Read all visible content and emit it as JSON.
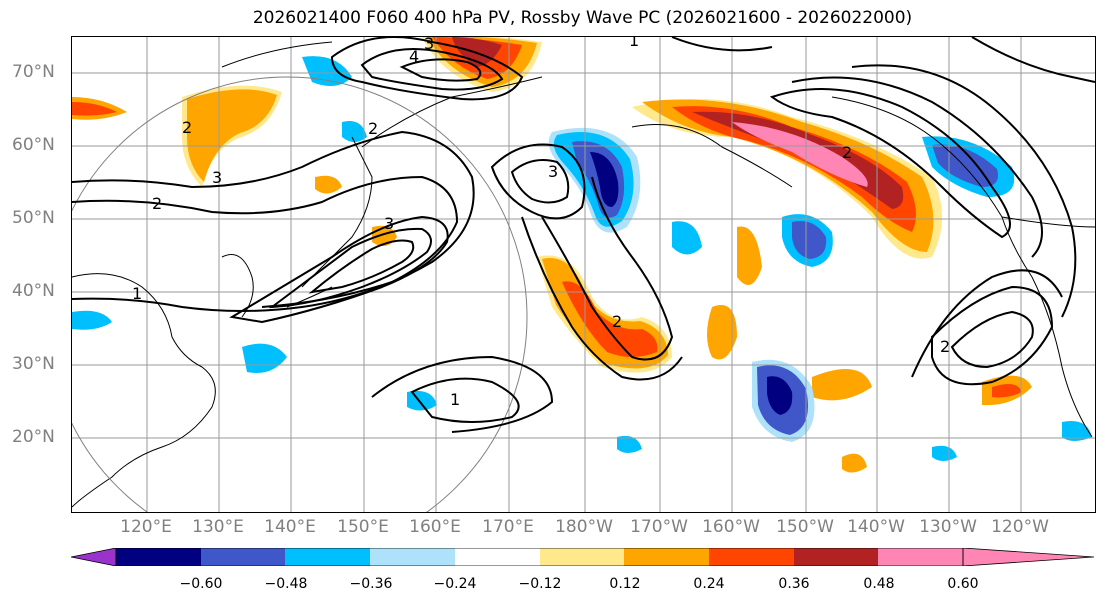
{
  "title": "2026021400 F060 400 hPa PV, Rossby Wave PC (2026021600 - 2026022000)",
  "map": {
    "lat_labels": [
      "70°N",
      "60°N",
      "50°N",
      "40°N",
      "30°N",
      "20°N"
    ],
    "lon_labels": [
      "120°E",
      "130°E",
      "140°E",
      "150°E",
      "160°E",
      "170°E",
      "180°W",
      "170°W",
      "160°W",
      "150°W",
      "140°W",
      "130°W",
      "120°W"
    ],
    "contour_labels": [
      "3",
      "4",
      "1",
      "2",
      "2",
      "3",
      "2",
      "3",
      "3",
      "1",
      "2",
      "1",
      "2",
      "2"
    ]
  },
  "colorbar": {
    "tick_labels": [
      "−0.60",
      "−0.48",
      "−0.36",
      "−0.24",
      "−0.12",
      "0.12",
      "0.24",
      "0.36",
      "0.48",
      "0.60"
    ],
    "colors": [
      "#9933cc",
      "#000080",
      "#3f57c8",
      "#00bfff",
      "#aee2fa",
      "#ffffff",
      "#ffe98c",
      "#ffa500",
      "#ff4500",
      "#b22222",
      "#ff85b5"
    ]
  }
}
